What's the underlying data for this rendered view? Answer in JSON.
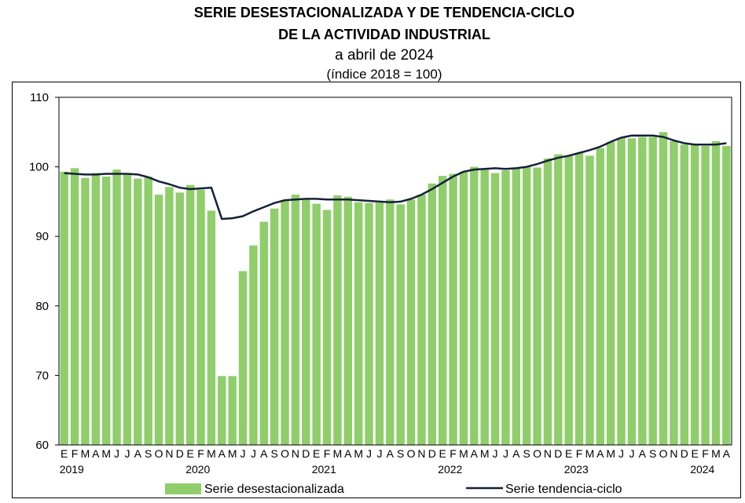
{
  "title": {
    "line1": "SERIE DESESTACIONALIZADA Y DE TENDENCIA-CICLO",
    "line2": "DE LA ACTIVIDAD INDUSTRIAL",
    "line3": "a abril de 2024",
    "line4": "(índice 2018 = 100)"
  },
  "colors": {
    "bars": "#8fce6b",
    "trend": "#16213a",
    "axis": "#000000"
  },
  "chart_data": {
    "type": "bar",
    "title": "SERIE DESESTACIONALIZADA Y DE TENDENCIA-CICLO DE LA ACTIVIDAD INDUSTRIAL",
    "ylim": [
      60,
      110
    ],
    "yticks": [
      60,
      70,
      80,
      90,
      100,
      110
    ],
    "month_labels": [
      "E",
      "F",
      "M",
      "A",
      "M",
      "J",
      "J",
      "A",
      "S",
      "O",
      "N",
      "D",
      "E",
      "F",
      "M",
      "A",
      "M",
      "J",
      "J",
      "A",
      "S",
      "O",
      "N",
      "D",
      "E",
      "F",
      "M",
      "A",
      "M",
      "J",
      "J",
      "A",
      "S",
      "O",
      "N",
      "D",
      "E",
      "F",
      "M",
      "A",
      "M",
      "J",
      "J",
      "A",
      "S",
      "O",
      "N",
      "D",
      "E",
      "F",
      "M",
      "A",
      "M",
      "J",
      "J",
      "A",
      "S",
      "O",
      "N",
      "D",
      "E",
      "F",
      "M",
      "A"
    ],
    "year_labels": [
      "2019",
      "2020",
      "2021",
      "2022",
      "2023",
      "2024"
    ],
    "series": [
      {
        "name": "Serie desestacionalizada",
        "type": "bar",
        "values": [
          99.3,
          99.8,
          98.4,
          99.1,
          98.6,
          99.6,
          98.9,
          98.3,
          98.6,
          96.0,
          97.1,
          96.3,
          97.4,
          96.7,
          93.7,
          69.9,
          69.9,
          85.0,
          88.7,
          92.1,
          94.0,
          95.2,
          96.0,
          95.3,
          94.7,
          93.8,
          95.9,
          95.7,
          94.9,
          94.8,
          94.9,
          95.3,
          94.6,
          95.3,
          96.0,
          97.6,
          98.7,
          99.0,
          99.3,
          100.0,
          99.6,
          99.1,
          99.5,
          99.8,
          100.0,
          99.9,
          101.2,
          101.8,
          101.6,
          102.0,
          101.6,
          102.7,
          103.6,
          104.2,
          104.1,
          104.3,
          104.3,
          105.0,
          103.7,
          103.2,
          103.3,
          103.0,
          103.7,
          103.0
        ]
      },
      {
        "name": "Serie tendencia-ciclo",
        "type": "line",
        "values": [
          99.1,
          99.0,
          98.9,
          98.9,
          99.0,
          99.0,
          99.0,
          98.9,
          98.5,
          97.9,
          97.5,
          97.0,
          96.8,
          96.9,
          97.0,
          92.5,
          92.6,
          92.9,
          93.6,
          94.2,
          94.8,
          95.2,
          95.3,
          95.4,
          95.4,
          95.3,
          95.3,
          95.3,
          95.2,
          95.1,
          95.0,
          94.9,
          95.0,
          95.4,
          96.0,
          96.8,
          97.7,
          98.6,
          99.3,
          99.6,
          99.7,
          99.8,
          99.7,
          99.8,
          100.0,
          100.4,
          100.9,
          101.3,
          101.6,
          102.0,
          102.4,
          102.9,
          103.6,
          104.2,
          104.5,
          104.5,
          104.5,
          104.3,
          103.8,
          103.4,
          103.2,
          103.2,
          103.2,
          103.4
        ]
      }
    ]
  },
  "legend": {
    "bars_label": "Serie desestacionalizada",
    "line_label": "Serie tendencia-ciclo"
  }
}
